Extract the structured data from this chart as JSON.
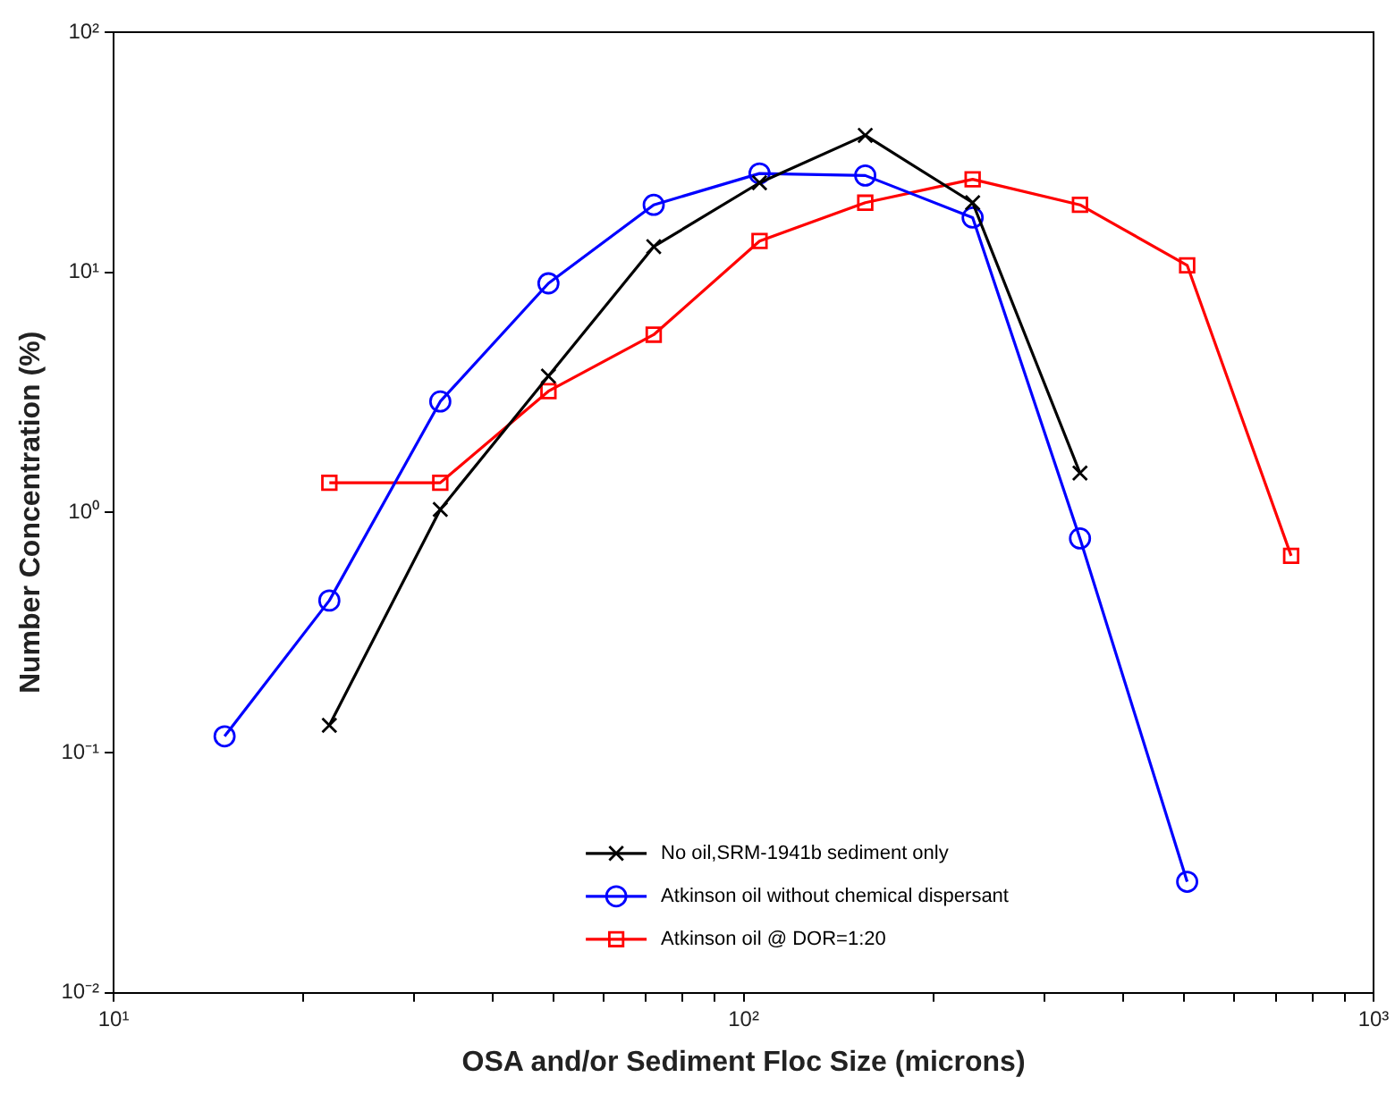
{
  "chart_data": {
    "type": "line",
    "xlabel": "OSA and/or Sediment Floc Size (microns)",
    "ylabel": "Number Concentration (%)",
    "log": "xy",
    "grid": false,
    "legend": "bottom",
    "line_style": "solid",
    "xlim": [
      10,
      1000
    ],
    "ylim": [
      0.01,
      100
    ],
    "xticks": [
      {
        "value": 10,
        "label": "10¹"
      },
      {
        "value": 20,
        "label": null
      },
      {
        "value": 30,
        "label": null
      },
      {
        "value": 40,
        "label": null
      },
      {
        "value": 50,
        "label": null
      },
      {
        "value": 60,
        "label": null
      },
      {
        "value": 70,
        "label": null
      },
      {
        "value": 80,
        "label": null
      },
      {
        "value": 90,
        "label": null
      },
      {
        "value": 100,
        "label": "10²"
      },
      {
        "value": 200,
        "label": null
      },
      {
        "value": 300,
        "label": null
      },
      {
        "value": 400,
        "label": null
      },
      {
        "value": 500,
        "label": null
      },
      {
        "value": 600,
        "label": null
      },
      {
        "value": 700,
        "label": null
      },
      {
        "value": 800,
        "label": null
      },
      {
        "value": 900,
        "label": null
      },
      {
        "value": 1000,
        "label": "10³"
      }
    ],
    "yticks": [
      {
        "value": 0.01,
        "label": "10⁻²"
      },
      {
        "value": 0.1,
        "label": "10⁻¹"
      },
      {
        "value": 1,
        "label": "10⁰"
      },
      {
        "value": 10,
        "label": "10¹"
      },
      {
        "value": 100,
        "label": "10²"
      }
    ],
    "series": [
      {
        "name": "No oil,SRM-1941b sediment only",
        "color": "#000000",
        "marker": "cross",
        "x": [
          22,
          33,
          49,
          72,
          106,
          156,
          231,
          342
        ],
        "values": [
          0.13,
          1.03,
          3.7,
          12.8,
          23.6,
          37.2,
          19.5,
          1.46
        ]
      },
      {
        "name": "Atkinson oil without chemical dispersant",
        "color": "#0000ff",
        "marker": "circle",
        "x": [
          15,
          22,
          33,
          49,
          72,
          106,
          156,
          231,
          342,
          506
        ],
        "values": [
          0.117,
          0.43,
          2.9,
          9.0,
          19.1,
          25.8,
          25.3,
          16.9,
          0.78,
          0.029
        ]
      },
      {
        "name": "Atkinson oil @ DOR=1:20",
        "color": "#ff0000",
        "marker": "square",
        "x": [
          22,
          33,
          49,
          72,
          106,
          156,
          231,
          342,
          506,
          740
        ],
        "values": [
          1.33,
          1.33,
          3.2,
          5.5,
          13.5,
          19.5,
          24.4,
          19.1,
          10.7,
          0.66
        ]
      }
    ]
  }
}
